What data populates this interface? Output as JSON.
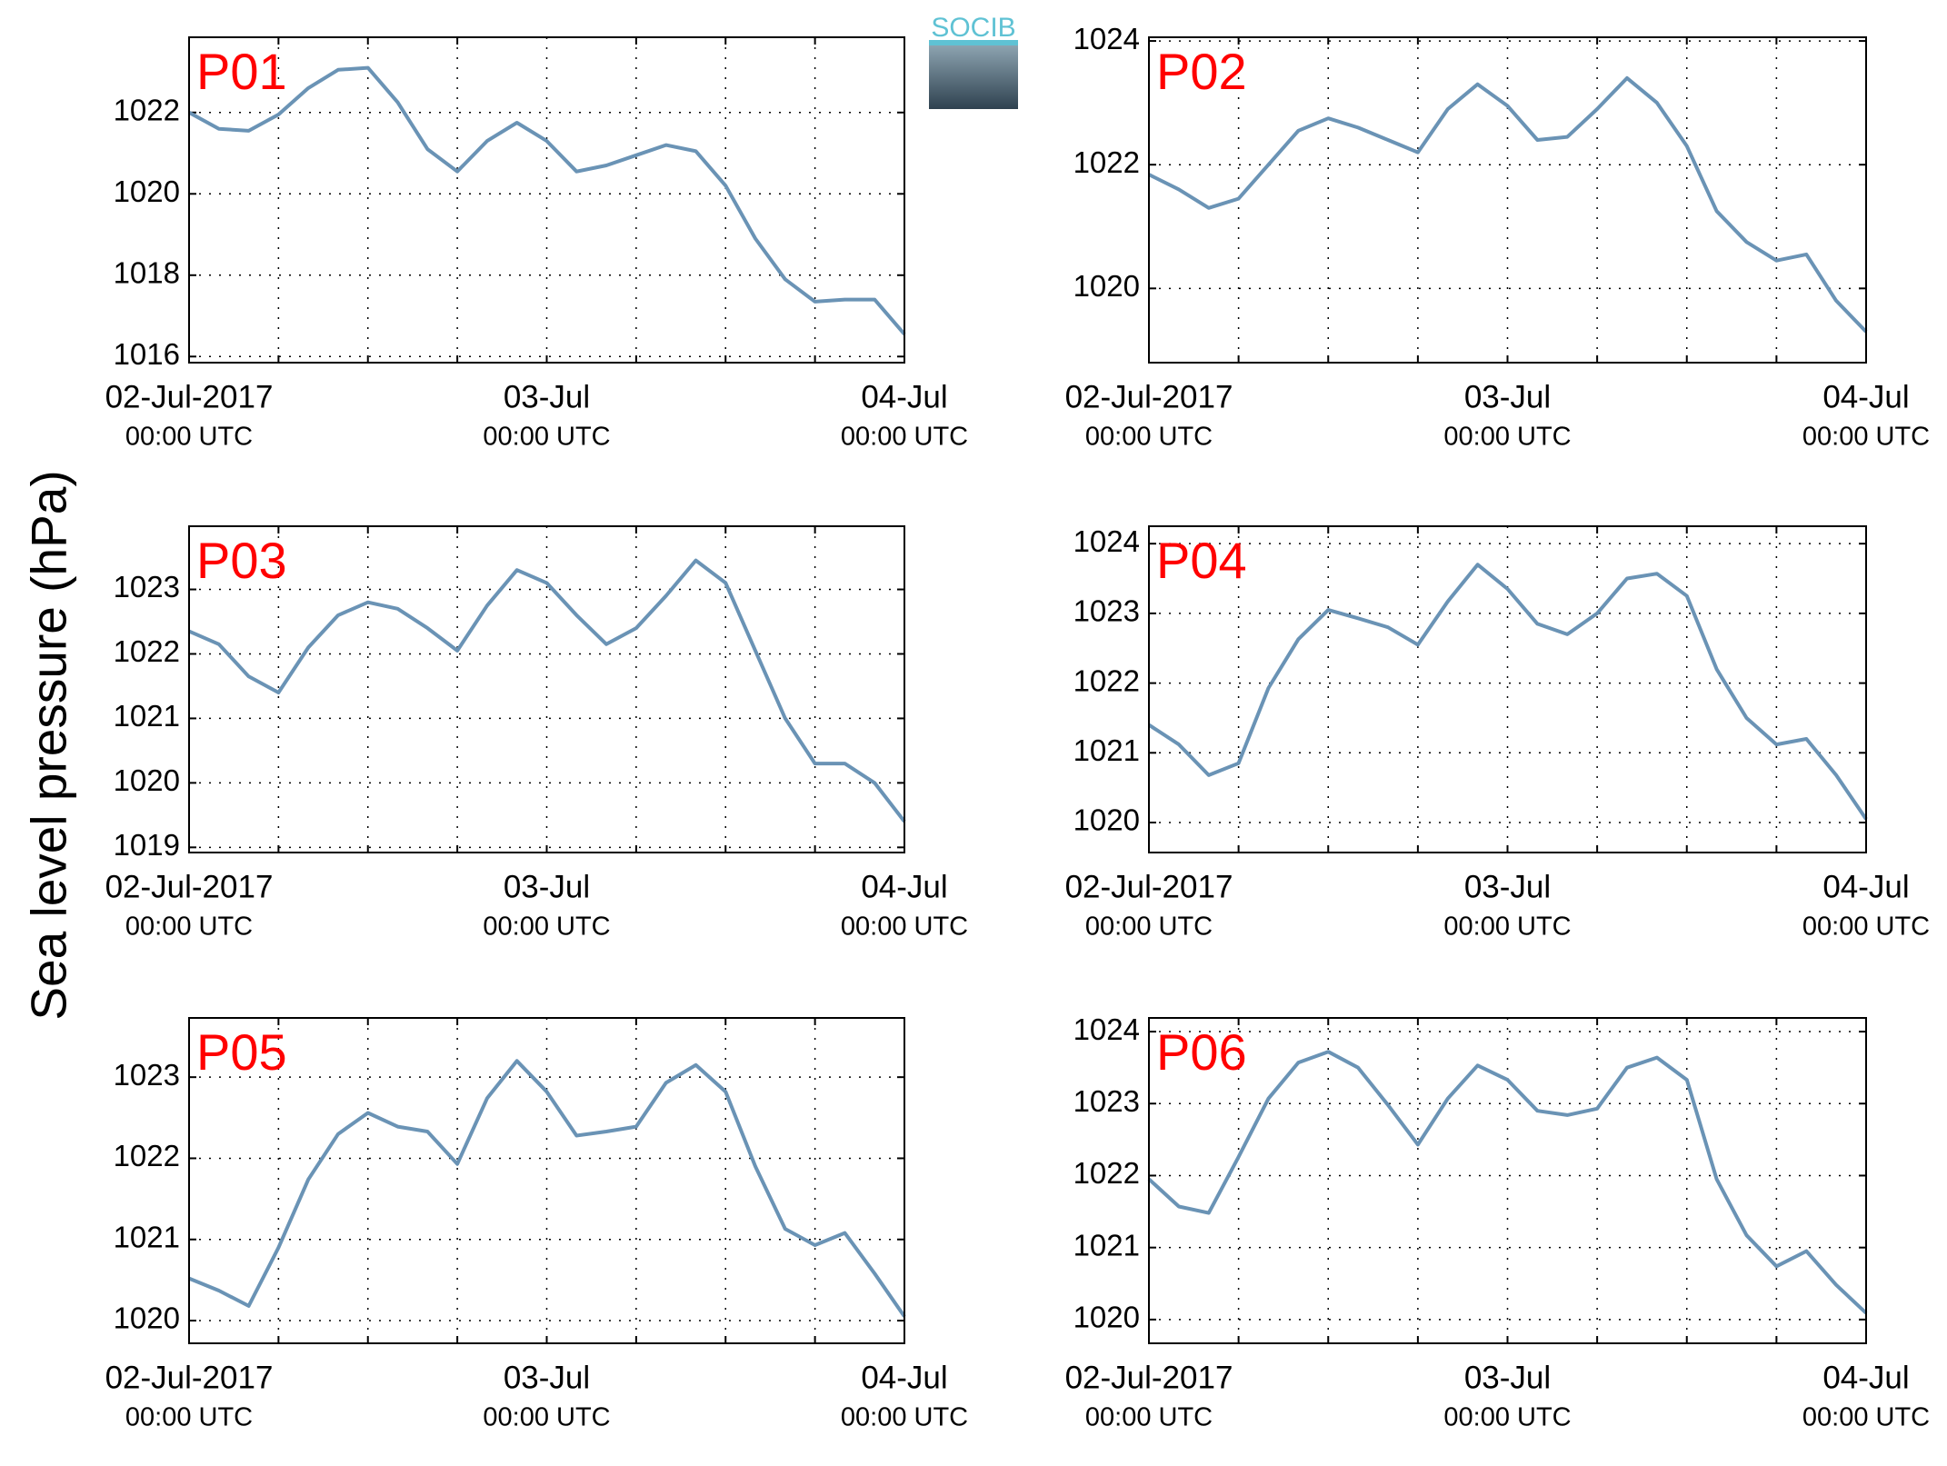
{
  "ylabel": "Sea level pressure (hPa)",
  "logo": "SOCIB",
  "chart_data": [
    {
      "type": "line",
      "title": "P01",
      "color": "#6a93b5",
      "x": [
        "2017-07-02 00:00",
        "2017-07-02 02:00",
        "2017-07-02 04:00",
        "2017-07-02 06:00",
        "2017-07-02 08:00",
        "2017-07-02 10:00",
        "2017-07-02 12:00",
        "2017-07-02 14:00",
        "2017-07-02 16:00",
        "2017-07-02 18:00",
        "2017-07-02 20:00",
        "2017-07-02 22:00",
        "2017-07-03 00:00",
        "2017-07-03 02:00",
        "2017-07-03 04:00",
        "2017-07-03 06:00",
        "2017-07-03 08:00",
        "2017-07-03 10:00",
        "2017-07-03 12:00",
        "2017-07-03 14:00",
        "2017-07-03 16:00",
        "2017-07-03 18:00",
        "2017-07-03 20:00",
        "2017-07-03 22:00",
        "2017-07-04 00:00"
      ],
      "values": [
        1022.0,
        1021.6,
        1021.55,
        1021.95,
        1022.6,
        1023.05,
        1023.1,
        1022.25,
        1021.1,
        1020.55,
        1021.3,
        1021.75,
        1021.3,
        1020.55,
        1020.7,
        1020.95,
        1021.2,
        1021.05,
        1020.2,
        1018.9,
        1017.9,
        1017.35,
        1017.4,
        1017.4,
        1016.55
      ],
      "xlim": [
        "2017-07-02 00:00",
        "2017-07-04 00:00"
      ],
      "xticks": [
        {
          "value": "2017-07-02 00:00",
          "label": "02-Jul-2017",
          "sublabel": "00:00 UTC"
        },
        {
          "value": "2017-07-03 00:00",
          "label": "03-Jul",
          "sublabel": "00:00 UTC"
        },
        {
          "value": "2017-07-04 00:00",
          "label": "04-Jul",
          "sublabel": "00:00 UTC"
        }
      ],
      "xminor": [
        "2017-07-02 06:00",
        "2017-07-02 12:00",
        "2017-07-02 18:00",
        "2017-07-03 06:00",
        "2017-07-03 12:00",
        "2017-07-03 18:00"
      ],
      "ylim": [
        1015.85,
        1023.85
      ],
      "yticks": [
        1016,
        1018,
        1020,
        1022
      ],
      "grid": true
    },
    {
      "type": "line",
      "title": "P02",
      "color": "#6a93b5",
      "x": [
        "2017-07-02 00:00",
        "2017-07-02 02:00",
        "2017-07-02 04:00",
        "2017-07-02 06:00",
        "2017-07-02 08:00",
        "2017-07-02 10:00",
        "2017-07-02 12:00",
        "2017-07-02 14:00",
        "2017-07-02 16:00",
        "2017-07-02 18:00",
        "2017-07-02 20:00",
        "2017-07-02 22:00",
        "2017-07-03 00:00",
        "2017-07-03 02:00",
        "2017-07-03 04:00",
        "2017-07-03 06:00",
        "2017-07-03 08:00",
        "2017-07-03 10:00",
        "2017-07-03 12:00",
        "2017-07-03 14:00",
        "2017-07-03 16:00",
        "2017-07-03 18:00",
        "2017-07-03 20:00",
        "2017-07-03 22:00",
        "2017-07-04 00:00"
      ],
      "values": [
        1021.84,
        1021.6,
        1021.3,
        1021.45,
        1022.0,
        1022.55,
        1022.75,
        1022.6,
        1022.4,
        1022.2,
        1022.9,
        1023.3,
        1022.95,
        1022.4,
        1022.45,
        1022.9,
        1023.4,
        1023.0,
        1022.3,
        1021.25,
        1020.75,
        1020.45,
        1020.55,
        1019.8,
        1019.3
      ],
      "xlim": [
        "2017-07-02 00:00",
        "2017-07-04 00:00"
      ],
      "xticks": [
        {
          "value": "2017-07-02 00:00",
          "label": "02-Jul-2017",
          "sublabel": "00:00 UTC"
        },
        {
          "value": "2017-07-03 00:00",
          "label": "03-Jul",
          "sublabel": "00:00 UTC"
        },
        {
          "value": "2017-07-04 00:00",
          "label": "04-Jul",
          "sublabel": "00:00 UTC"
        }
      ],
      "xminor": [
        "2017-07-02 06:00",
        "2017-07-02 12:00",
        "2017-07-02 18:00",
        "2017-07-03 06:00",
        "2017-07-03 12:00",
        "2017-07-03 18:00"
      ],
      "ylim": [
        1018.8,
        1024.06
      ],
      "yticks": [
        1020,
        1022,
        1024
      ],
      "grid": true
    },
    {
      "type": "line",
      "title": "P03",
      "color": "#6a93b5",
      "x": [
        "2017-07-02 00:00",
        "2017-07-02 02:00",
        "2017-07-02 04:00",
        "2017-07-02 06:00",
        "2017-07-02 08:00",
        "2017-07-02 10:00",
        "2017-07-02 12:00",
        "2017-07-02 14:00",
        "2017-07-02 16:00",
        "2017-07-02 18:00",
        "2017-07-02 20:00",
        "2017-07-02 22:00",
        "2017-07-03 00:00",
        "2017-07-03 02:00",
        "2017-07-03 04:00",
        "2017-07-03 06:00",
        "2017-07-03 08:00",
        "2017-07-03 10:00",
        "2017-07-03 12:00",
        "2017-07-03 14:00",
        "2017-07-03 16:00",
        "2017-07-03 18:00",
        "2017-07-03 20:00",
        "2017-07-03 22:00",
        "2017-07-04 00:00"
      ],
      "values": [
        1022.35,
        1022.15,
        1021.65,
        1021.4,
        1022.1,
        1022.6,
        1022.8,
        1022.7,
        1022.4,
        1022.05,
        1022.75,
        1023.3,
        1023.1,
        1022.6,
        1022.15,
        1022.4,
        1022.9,
        1023.45,
        1023.1,
        1022.05,
        1021.0,
        1020.3,
        1020.3,
        1020.0,
        1019.4
      ],
      "xlim": [
        "2017-07-02 00:00",
        "2017-07-04 00:00"
      ],
      "xticks": [
        {
          "value": "2017-07-02 00:00",
          "label": "02-Jul-2017",
          "sublabel": "00:00 UTC"
        },
        {
          "value": "2017-07-03 00:00",
          "label": "03-Jul",
          "sublabel": "00:00 UTC"
        },
        {
          "value": "2017-07-04 00:00",
          "label": "04-Jul",
          "sublabel": "00:00 UTC"
        }
      ],
      "xminor": [
        "2017-07-02 06:00",
        "2017-07-02 12:00",
        "2017-07-02 18:00",
        "2017-07-03 06:00",
        "2017-07-03 12:00",
        "2017-07-03 18:00"
      ],
      "ylim": [
        1018.92,
        1023.98
      ],
      "yticks": [
        1019,
        1020,
        1021,
        1022,
        1023
      ],
      "grid": true
    },
    {
      "type": "line",
      "title": "P04",
      "color": "#6a93b5",
      "x": [
        "2017-07-02 00:00",
        "2017-07-02 02:00",
        "2017-07-02 04:00",
        "2017-07-02 06:00",
        "2017-07-02 08:00",
        "2017-07-02 10:00",
        "2017-07-02 12:00",
        "2017-07-02 14:00",
        "2017-07-02 16:00",
        "2017-07-02 18:00",
        "2017-07-02 20:00",
        "2017-07-02 22:00",
        "2017-07-03 00:00",
        "2017-07-03 02:00",
        "2017-07-03 04:00",
        "2017-07-03 06:00",
        "2017-07-03 08:00",
        "2017-07-03 10:00",
        "2017-07-03 12:00",
        "2017-07-03 14:00",
        "2017-07-03 16:00",
        "2017-07-03 18:00",
        "2017-07-03 20:00",
        "2017-07-03 22:00",
        "2017-07-04 00:00"
      ],
      "values": [
        1021.4,
        1021.12,
        1020.68,
        1020.85,
        1021.93,
        1022.63,
        1023.05,
        1022.93,
        1022.8,
        1022.55,
        1023.17,
        1023.7,
        1023.35,
        1022.85,
        1022.7,
        1023.0,
        1023.5,
        1023.57,
        1023.25,
        1022.2,
        1021.5,
        1021.12,
        1021.2,
        1020.68,
        1020.05
      ],
      "xlim": [
        "2017-07-02 00:00",
        "2017-07-04 00:00"
      ],
      "xticks": [
        {
          "value": "2017-07-02 00:00",
          "label": "02-Jul-2017",
          "sublabel": "00:00 UTC"
        },
        {
          "value": "2017-07-03 00:00",
          "label": "03-Jul",
          "sublabel": "00:00 UTC"
        },
        {
          "value": "2017-07-04 00:00",
          "label": "04-Jul",
          "sublabel": "00:00 UTC"
        }
      ],
      "xminor": [
        "2017-07-02 06:00",
        "2017-07-02 12:00",
        "2017-07-02 18:00",
        "2017-07-03 06:00",
        "2017-07-03 12:00",
        "2017-07-03 18:00"
      ],
      "ylim": [
        1019.57,
        1024.25
      ],
      "yticks": [
        1020,
        1021,
        1022,
        1023,
        1024
      ],
      "grid": true
    },
    {
      "type": "line",
      "title": "P05",
      "color": "#6a93b5",
      "x": [
        "2017-07-02 00:00",
        "2017-07-02 02:00",
        "2017-07-02 04:00",
        "2017-07-02 06:00",
        "2017-07-02 08:00",
        "2017-07-02 10:00",
        "2017-07-02 12:00",
        "2017-07-02 14:00",
        "2017-07-02 16:00",
        "2017-07-02 18:00",
        "2017-07-02 20:00",
        "2017-07-02 22:00",
        "2017-07-03 00:00",
        "2017-07-03 02:00",
        "2017-07-03 04:00",
        "2017-07-03 06:00",
        "2017-07-03 08:00",
        "2017-07-03 10:00",
        "2017-07-03 12:00",
        "2017-07-03 14:00",
        "2017-07-03 16:00",
        "2017-07-03 18:00",
        "2017-07-03 20:00",
        "2017-07-03 22:00",
        "2017-07-04 00:00"
      ],
      "values": [
        1020.52,
        1020.37,
        1020.18,
        1020.9,
        1021.74,
        1022.3,
        1022.56,
        1022.39,
        1022.33,
        1021.93,
        1022.74,
        1023.2,
        1022.82,
        1022.28,
        1022.33,
        1022.39,
        1022.93,
        1023.15,
        1022.82,
        1021.9,
        1021.13,
        1020.93,
        1021.08,
        1020.58,
        1020.05
      ],
      "xlim": [
        "2017-07-02 00:00",
        "2017-07-04 00:00"
      ],
      "xticks": [
        {
          "value": "2017-07-02 00:00",
          "label": "02-Jul-2017",
          "sublabel": "00:00 UTC"
        },
        {
          "value": "2017-07-03 00:00",
          "label": "03-Jul",
          "sublabel": "00:00 UTC"
        },
        {
          "value": "2017-07-04 00:00",
          "label": "04-Jul",
          "sublabel": "00:00 UTC"
        }
      ],
      "xminor": [
        "2017-07-02 06:00",
        "2017-07-02 12:00",
        "2017-07-02 18:00",
        "2017-07-03 06:00",
        "2017-07-03 12:00",
        "2017-07-03 18:00"
      ],
      "ylim": [
        1019.72,
        1023.73
      ],
      "yticks": [
        1020,
        1021,
        1022,
        1023
      ],
      "grid": true
    },
    {
      "type": "line",
      "title": "P06",
      "color": "#6a93b5",
      "x": [
        "2017-07-02 00:00",
        "2017-07-02 02:00",
        "2017-07-02 04:00",
        "2017-07-02 06:00",
        "2017-07-02 08:00",
        "2017-07-02 10:00",
        "2017-07-02 12:00",
        "2017-07-02 14:00",
        "2017-07-02 16:00",
        "2017-07-02 18:00",
        "2017-07-02 20:00",
        "2017-07-02 22:00",
        "2017-07-03 00:00",
        "2017-07-03 02:00",
        "2017-07-03 04:00",
        "2017-07-03 06:00",
        "2017-07-03 08:00",
        "2017-07-03 10:00",
        "2017-07-03 12:00",
        "2017-07-03 14:00",
        "2017-07-03 16:00",
        "2017-07-03 18:00",
        "2017-07-03 20:00",
        "2017-07-03 22:00",
        "2017-07-04 00:00"
      ],
      "values": [
        1021.95,
        1021.57,
        1021.48,
        1022.26,
        1023.07,
        1023.57,
        1023.72,
        1023.5,
        1022.98,
        1022.43,
        1023.07,
        1023.53,
        1023.33,
        1022.9,
        1022.84,
        1022.93,
        1023.5,
        1023.64,
        1023.33,
        1021.95,
        1021.17,
        1020.74,
        1020.95,
        1020.48,
        1020.09
      ],
      "xlim": [
        "2017-07-02 00:00",
        "2017-07-04 00:00"
      ],
      "xticks": [
        {
          "value": "2017-07-02 00:00",
          "label": "02-Jul-2017",
          "sublabel": "00:00 UTC"
        },
        {
          "value": "2017-07-03 00:00",
          "label": "03-Jul",
          "sublabel": "00:00 UTC"
        },
        {
          "value": "2017-07-04 00:00",
          "label": "04-Jul",
          "sublabel": "00:00 UTC"
        }
      ],
      "xminor": [
        "2017-07-02 06:00",
        "2017-07-02 12:00",
        "2017-07-02 18:00",
        "2017-07-03 06:00",
        "2017-07-03 12:00",
        "2017-07-03 18:00"
      ],
      "ylim": [
        1019.67,
        1024.19
      ],
      "yticks": [
        1020,
        1021,
        1022,
        1023,
        1024
      ],
      "grid": true
    }
  ]
}
